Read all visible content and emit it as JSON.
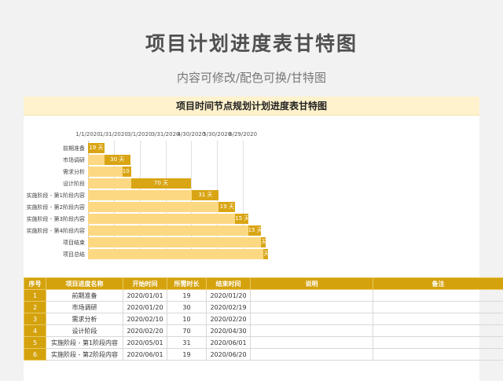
{
  "page": {
    "title": "项目计划进度表甘特图",
    "subtitle": "内容可修改/配色可换/甘特图"
  },
  "sheet": {
    "title": "项目时间节点规划计划进度表甘特图"
  },
  "chart_data": {
    "type": "bar",
    "subtype": "gantt",
    "x_ticks": [
      "1/1/2020",
      "1/31/2020",
      "3/1/2020",
      "3/31/2020",
      "4/30/2020",
      "5/30/2020",
      "6/29/2020"
    ],
    "x_range": [
      "2020-01-01",
      "2020-07-19"
    ],
    "categories": [
      "前期准备",
      "市场调研",
      "需求分析",
      "设计阶段",
      "实施阶段 - 第1阶段内容",
      "实施阶段 - 第2阶段内容",
      "实施阶段 - 第3阶段内容",
      "实施阶段 - 第4阶段内容",
      "项目结束",
      "项目总结"
    ],
    "start_dates": [
      "2020-01-01",
      "2020-01-20",
      "2020-02-10",
      "2020-02-20",
      "2020-05-01",
      "2020-06-01",
      "2020-06-20",
      "2020-07-05",
      "2020-07-20",
      "2020-07-23"
    ],
    "durations": [
      19,
      30,
      10,
      70,
      31,
      19,
      15,
      15,
      3,
      3
    ],
    "duration_labels": [
      "19 天",
      "30 天",
      "10 天",
      "70 天",
      "31 天",
      "19 天",
      "15 天",
      "15 天",
      "天",
      "天"
    ],
    "colors": {
      "padding": "#fdd882",
      "duration": "#d9a514"
    }
  },
  "table": {
    "headers": [
      "序号",
      "项目进度名称",
      "开始时间",
      "所需时长",
      "结束时间",
      "说明",
      "备注"
    ],
    "rows": [
      [
        "1",
        "前期准备",
        "2020/01/01",
        "19",
        "2020/01/20",
        "",
        ""
      ],
      [
        "2",
        "市场调研",
        "2020/01/20",
        "30",
        "2020/02/19",
        "",
        ""
      ],
      [
        "3",
        "需求分析",
        "2020/02/10",
        "10",
        "2020/02/20",
        "",
        ""
      ],
      [
        "4",
        "设计阶段",
        "2020/02/20",
        "70",
        "2020/04/30",
        "",
        ""
      ],
      [
        "5",
        "实施阶段 - 第1阶段内容",
        "2020/05/01",
        "31",
        "2020/06/01",
        "",
        ""
      ],
      [
        "6",
        "实施阶段 - 第2阶段内容",
        "2020/06/01",
        "19",
        "2020/06/20",
        "",
        ""
      ]
    ]
  }
}
